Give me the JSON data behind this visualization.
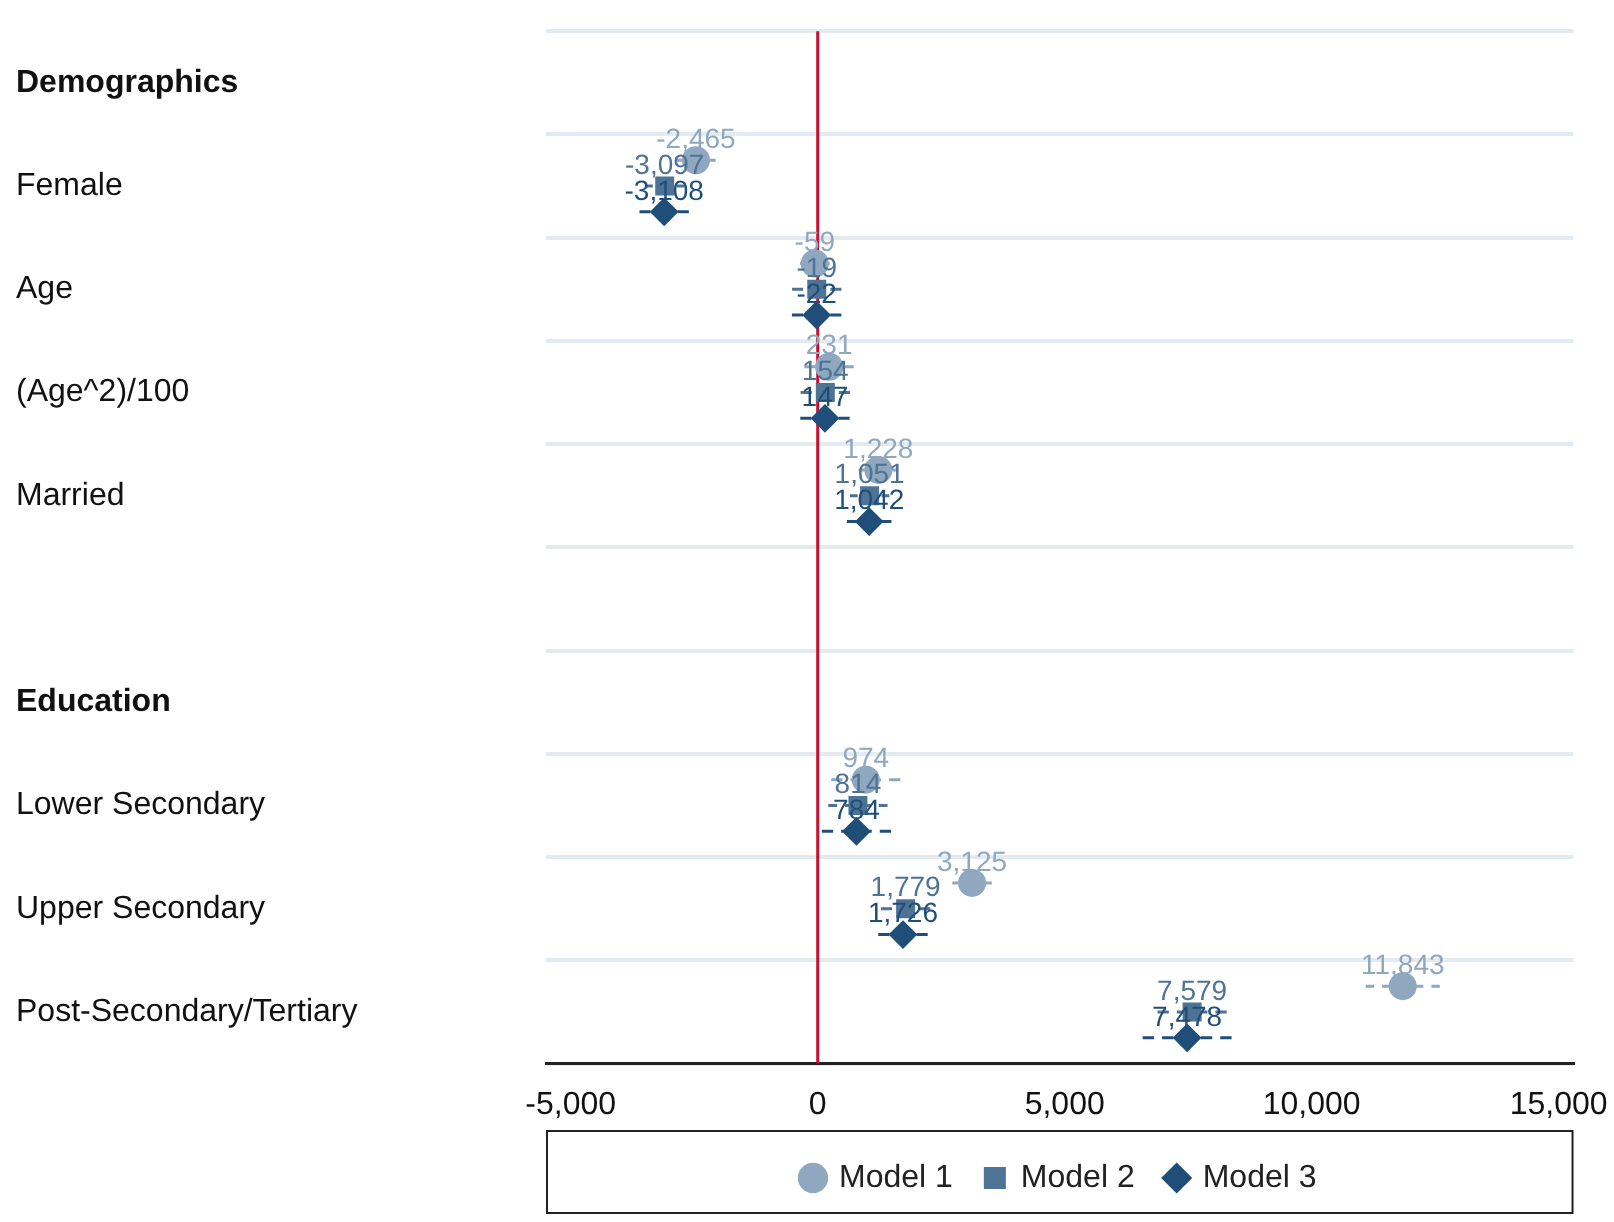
{
  "chart_data": {
    "type": "scatter",
    "orientation": "horizontal",
    "categories": [
      "Demographics",
      "Female",
      "Age",
      "(Age^2)/100",
      "Married",
      null,
      "Education",
      "Lower Secondary",
      "Upper Secondary",
      "Post-Secondary/Tertiary"
    ],
    "series": [
      {
        "name": "Model 1",
        "color": "#8fa8c0",
        "marker": "circle",
        "values": [
          null,
          -2465,
          -59,
          231,
          1228,
          null,
          null,
          974,
          3125,
          11843
        ],
        "errors": [
          null,
          400,
          300,
          500,
          400,
          null,
          null,
          700,
          400,
          750
        ],
        "value_labels": [
          null,
          "-2,465",
          "-59",
          "231",
          "1,228",
          null,
          null,
          "974",
          "3,125",
          "11,843"
        ]
      },
      {
        "name": "Model 2",
        "color": "#4f7394",
        "marker": "square",
        "values": [
          null,
          -3097,
          -19,
          154,
          1051,
          null,
          null,
          814,
          1779,
          7579
        ],
        "errors": [
          null,
          400,
          500,
          500,
          400,
          null,
          null,
          600,
          500,
          700
        ],
        "value_labels": [
          null,
          "-3,097",
          "-19",
          "154",
          "1,051",
          null,
          null,
          "814",
          "1,779",
          "7,579"
        ]
      },
      {
        "name": "Model 3",
        "color": "#1f4e79",
        "marker": "diamond",
        "values": [
          null,
          -3108,
          -22,
          147,
          1042,
          null,
          null,
          784,
          1726,
          7478
        ],
        "errors": [
          null,
          500,
          500,
          500,
          450,
          null,
          null,
          700,
          500,
          900
        ],
        "value_labels": [
          null,
          "-3,108",
          "-22",
          "147",
          "1,042",
          null,
          null,
          "784",
          "1,726",
          "7,478"
        ]
      }
    ],
    "xlim": [
      -5500,
      15300
    ],
    "xticks": [
      {
        "value": -5000,
        "label": "-5,000"
      },
      {
        "value": 0,
        "label": "0"
      },
      {
        "value": 5000,
        "label": "5,000"
      },
      {
        "value": 10000,
        "label": "10,000"
      },
      {
        "value": 15000,
        "label": "15,000"
      }
    ],
    "ref_lines": [
      {
        "axis": "x",
        "value": 0,
        "color": "#c8102e"
      }
    ],
    "grid": "y",
    "legend": "bottom",
    "line_style": "dashed"
  }
}
